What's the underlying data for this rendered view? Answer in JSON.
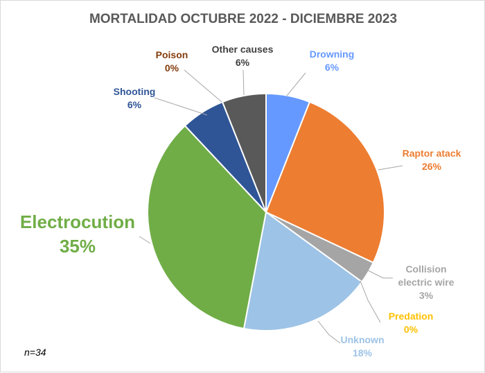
{
  "chart_data": {
    "type": "pie",
    "title": "MORTALIDAD OCTUBRE 2022 - DICIEMBRE 2023",
    "note": "n=34",
    "slices": [
      {
        "name": "Drowning",
        "label": "6%",
        "value": 6,
        "color": "#6699ff",
        "label_color": "#6699ff"
      },
      {
        "name": "Raptor atack",
        "label": "26%",
        "value": 26,
        "color": "#ed7d31",
        "label_color": "#ed7d31"
      },
      {
        "name": "Collision electric wire",
        "name_lines": [
          "Collision",
          "electric wire"
        ],
        "label": "3%",
        "value": 3,
        "color": "#a5a5a5",
        "label_color": "#a5a5a5"
      },
      {
        "name": "Predation",
        "label": "0%",
        "value": 0,
        "color": "#ffc000",
        "label_color": "#ffc000"
      },
      {
        "name": "Unknown",
        "label": "18%",
        "value": 18,
        "color": "#9dc3e6",
        "label_color": "#9dc3e6"
      },
      {
        "name": "Electrocution",
        "label": "35%",
        "value": 35,
        "color": "#70ad47",
        "label_color": "#70ad47"
      },
      {
        "name": "Shooting",
        "label": "6%",
        "value": 6,
        "color": "#2f5597",
        "label_color": "#2f5597"
      },
      {
        "name": "Poison",
        "label": "0%",
        "value": 0,
        "color": "#843c0c",
        "label_color": "#843c0c"
      },
      {
        "name": "Other causes",
        "label": "6%",
        "value": 6,
        "color": "#595959",
        "label_color": "#404040"
      }
    ]
  }
}
